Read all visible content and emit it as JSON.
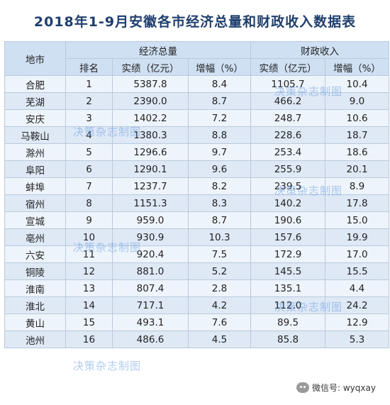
{
  "title": "2018年1-9月安徽各市经济总量和财政收入数据表",
  "header": {
    "city": "地市",
    "economy": "经济总量",
    "fiscal": "财政收入",
    "rank": "排名",
    "econ_actual": "实绩（亿元）",
    "econ_growth": "增幅（%）",
    "fiscal_actual": "实绩（亿元）",
    "fiscal_growth": "增幅（%）"
  },
  "rows": [
    {
      "city": "合肥",
      "rank": "1",
      "econ": "5387.8",
      "econ_g": "8.4",
      "fiscal": "1105.7",
      "fiscal_g": "10.4"
    },
    {
      "city": "芜湖",
      "rank": "2",
      "econ": "2390.0",
      "econ_g": "8.7",
      "fiscal": "466.2",
      "fiscal_g": "9.0"
    },
    {
      "city": "安庆",
      "rank": "3",
      "econ": "1402.2",
      "econ_g": "7.2",
      "fiscal": "248.7",
      "fiscal_g": "10.6"
    },
    {
      "city": "马鞍山",
      "rank": "4",
      "econ": "1380.3",
      "econ_g": "8.8",
      "fiscal": "228.6",
      "fiscal_g": "18.7"
    },
    {
      "city": "滁州",
      "rank": "5",
      "econ": "1296.6",
      "econ_g": "9.7",
      "fiscal": "253.4",
      "fiscal_g": "18.6"
    },
    {
      "city": "阜阳",
      "rank": "6",
      "econ": "1290.1",
      "econ_g": "9.6",
      "fiscal": "255.9",
      "fiscal_g": "20.1"
    },
    {
      "city": "蚌埠",
      "rank": "7",
      "econ": "1237.7",
      "econ_g": "8.2",
      "fiscal": "239.5",
      "fiscal_g": "8.9"
    },
    {
      "city": "宿州",
      "rank": "8",
      "econ": "1151.3",
      "econ_g": "8.3",
      "fiscal": "140.2",
      "fiscal_g": "17.8"
    },
    {
      "city": "宣城",
      "rank": "9",
      "econ": "959.0",
      "econ_g": "8.7",
      "fiscal": "190.6",
      "fiscal_g": "15.0"
    },
    {
      "city": "亳州",
      "rank": "10",
      "econ": "930.9",
      "econ_g": "10.3",
      "fiscal": "157.6",
      "fiscal_g": "19.9"
    },
    {
      "city": "六安",
      "rank": "11",
      "econ": "920.4",
      "econ_g": "7.5",
      "fiscal": "172.9",
      "fiscal_g": "17.0"
    },
    {
      "city": "铜陵",
      "rank": "12",
      "econ": "881.0",
      "econ_g": "5.2",
      "fiscal": "145.5",
      "fiscal_g": "15.5"
    },
    {
      "city": "淮南",
      "rank": "13",
      "econ": "807.4",
      "econ_g": "2.8",
      "fiscal": "135.1",
      "fiscal_g": "4.4"
    },
    {
      "city": "淮北",
      "rank": "14",
      "econ": "717.1",
      "econ_g": "4.2",
      "fiscal": "112.0",
      "fiscal_g": "24.2"
    },
    {
      "city": "黄山",
      "rank": "15",
      "econ": "493.1",
      "econ_g": "7.6",
      "fiscal": "89.5",
      "fiscal_g": "12.9"
    },
    {
      "city": "池州",
      "rank": "16",
      "econ": "486.6",
      "econ_g": "4.5",
      "fiscal": "85.8",
      "fiscal_g": "5.3"
    }
  ],
  "watermark": "决策杂志制图",
  "wechat_label": "微信号: wyqxay",
  "icons": {
    "wechat": "wechat-icon"
  }
}
